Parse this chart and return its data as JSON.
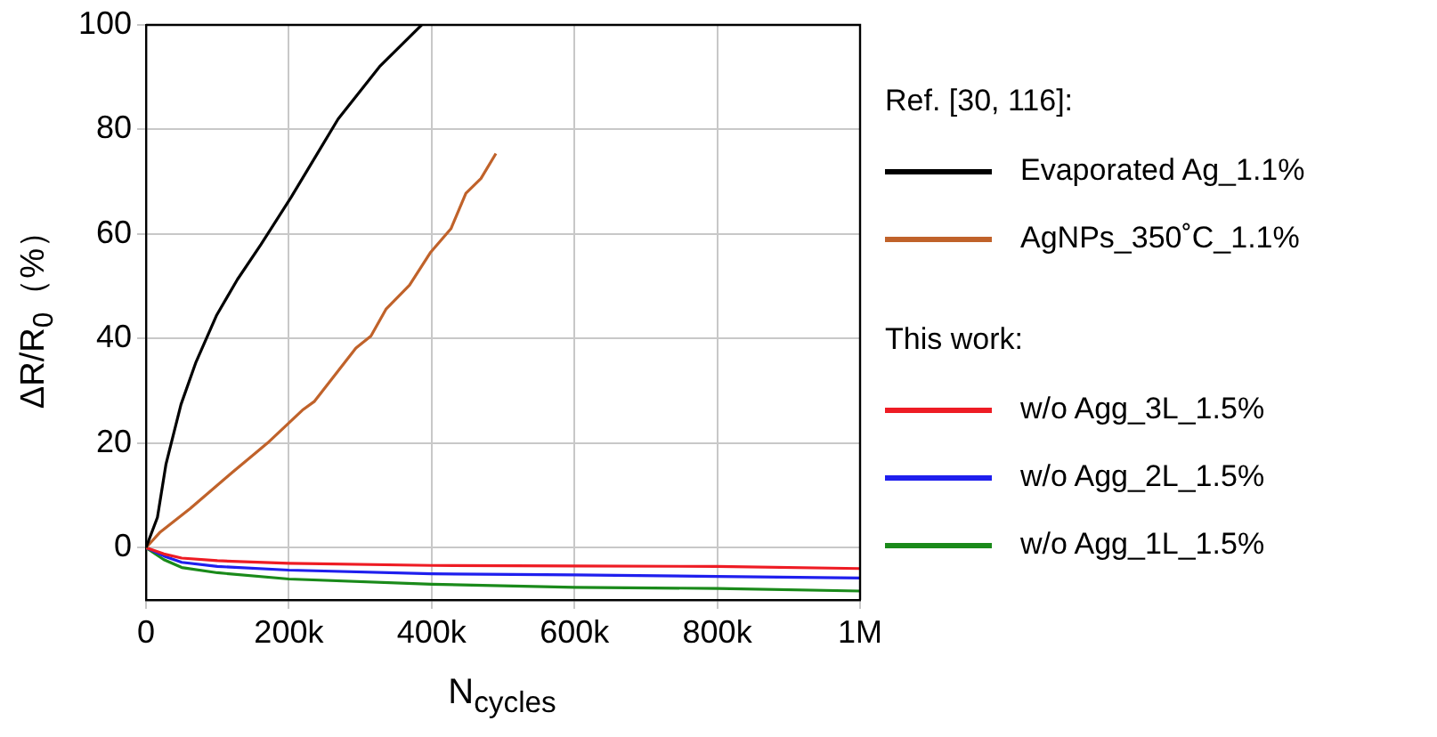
{
  "chart_data": {
    "type": "line",
    "xlabel": "N$_{cycles}$",
    "ylabel": "ΔR/R$_{0}$（%）",
    "xlim": [
      0,
      1000000
    ],
    "ylim": [
      -10,
      100
    ],
    "xticks": [
      0,
      {
        "value": 200000,
        "label": "200k"
      },
      {
        "value": 400000,
        "label": "400k"
      },
      {
        "value": 600000,
        "label": "600k"
      },
      {
        "value": 800000,
        "label": "800k"
      },
      {
        "value": 1000000,
        "label": "1M"
      }
    ],
    "yticks": [
      0,
      20,
      40,
      60,
      80,
      100
    ],
    "grid": true,
    "legend": "right",
    "marker": "none",
    "line_style": "solid",
    "annotations": [
      "Ref. [30, 116]:",
      "This work:"
    ],
    "series": [
      {
        "name": "Evaporated Ag_1.1%",
        "color": "#000000",
        "x": [
          0,
          16000,
          28000,
          49000,
          70000,
          99000,
          128000,
          161000,
          203000,
          244000,
          269000,
          327000,
          386000
        ],
        "values": [
          0,
          5.8,
          16,
          27.4,
          35.5,
          44.5,
          51.3,
          58,
          67,
          76.3,
          82,
          92,
          100
        ]
      },
      {
        "name": "AgNPs_350˚C_1.1%",
        "color": "#c0622a",
        "x": [
          0,
          20000,
          62000,
          120000,
          170000,
          219000,
          236000,
          294000,
          315000,
          336000,
          369000,
          398000,
          427000,
          448000,
          469000,
          490000
        ],
        "values": [
          0,
          3,
          7.5,
          14.3,
          20,
          26.3,
          28,
          38.2,
          40.5,
          45.6,
          50.2,
          56.4,
          61,
          67.8,
          70.6,
          75.4
        ]
      },
      {
        "name": "w/o Agg_3L_1.5%",
        "color": "#ee1c24",
        "x": [
          0,
          25000,
          50000,
          100000,
          200000,
          400000,
          600000,
          800000,
          1000000
        ],
        "values": [
          0,
          -1.2,
          -2,
          -2.5,
          -3,
          -3.4,
          -3.5,
          -3.6,
          -4
        ]
      },
      {
        "name": "w/o Agg_2L_1.5%",
        "color": "#1f1fee",
        "x": [
          0,
          25000,
          50000,
          100000,
          200000,
          400000,
          600000,
          800000,
          1000000
        ],
        "values": [
          0,
          -1.6,
          -2.8,
          -3.6,
          -4.3,
          -5,
          -5.2,
          -5.5,
          -5.8
        ]
      },
      {
        "name": "w/o Agg_1L_1.5%",
        "color": "#1a8a1a",
        "x": [
          0,
          25000,
          50000,
          100000,
          200000,
          400000,
          600000,
          800000,
          1000000
        ],
        "values": [
          0,
          -2.3,
          -3.8,
          -4.8,
          -6,
          -7,
          -7.6,
          -7.8,
          -8.3
        ]
      }
    ]
  }
}
